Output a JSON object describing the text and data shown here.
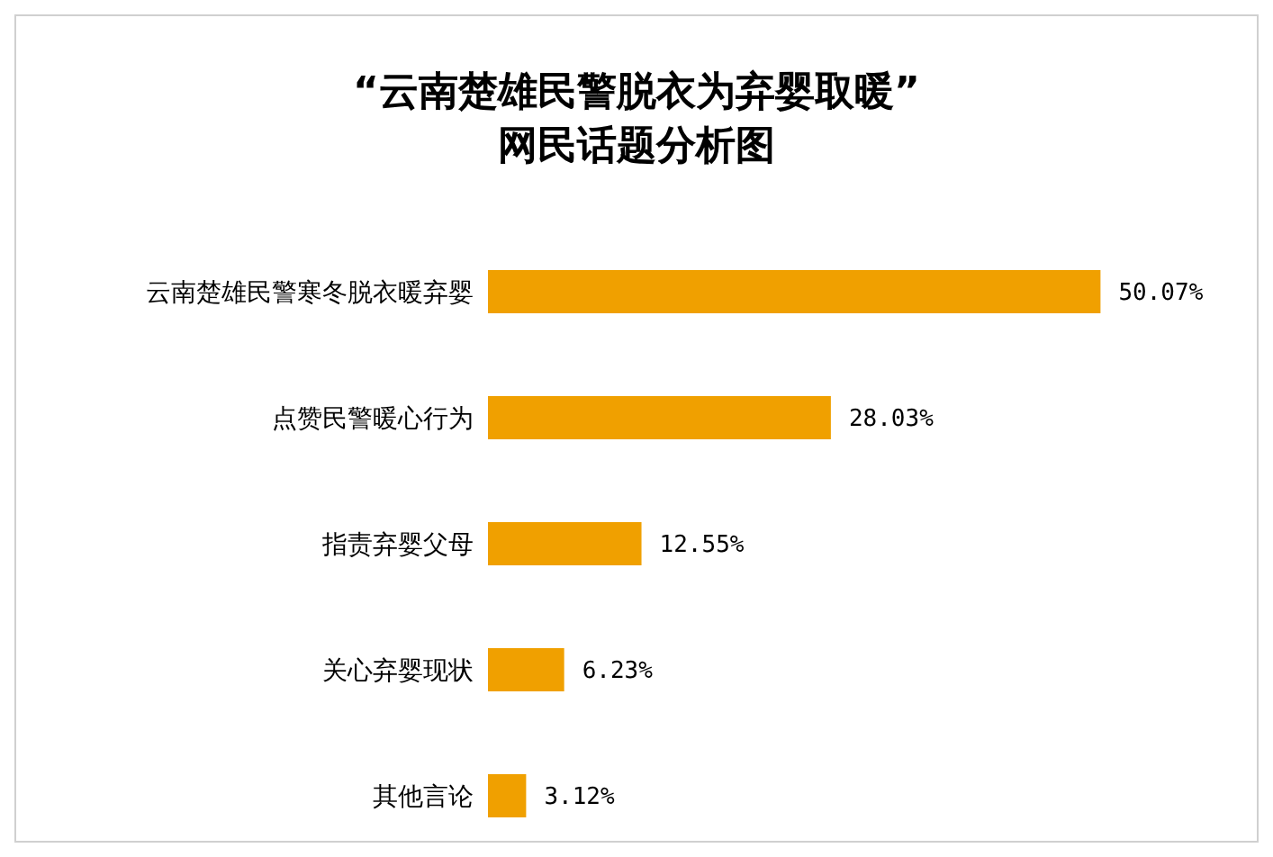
{
  "chart_data": {
    "type": "bar",
    "orientation": "horizontal",
    "title": "“云南楚雄民警脱衣为弃婴取暖”\n网民话题分析图",
    "categories": [
      "云南楚雄民警寒冬脱衣暖弃婴",
      "点赞民警暖心行为",
      "指责弃婴父母",
      "关心弃婴现状",
      "其他言论"
    ],
    "values": [
      50.07,
      28.03,
      12.55,
      6.23,
      3.12
    ],
    "value_labels": [
      "50.07%",
      "28.03%",
      "12.55%",
      "6.23%",
      "3.12%"
    ],
    "color": "#f0a000",
    "grid": false,
    "legend": false
  }
}
